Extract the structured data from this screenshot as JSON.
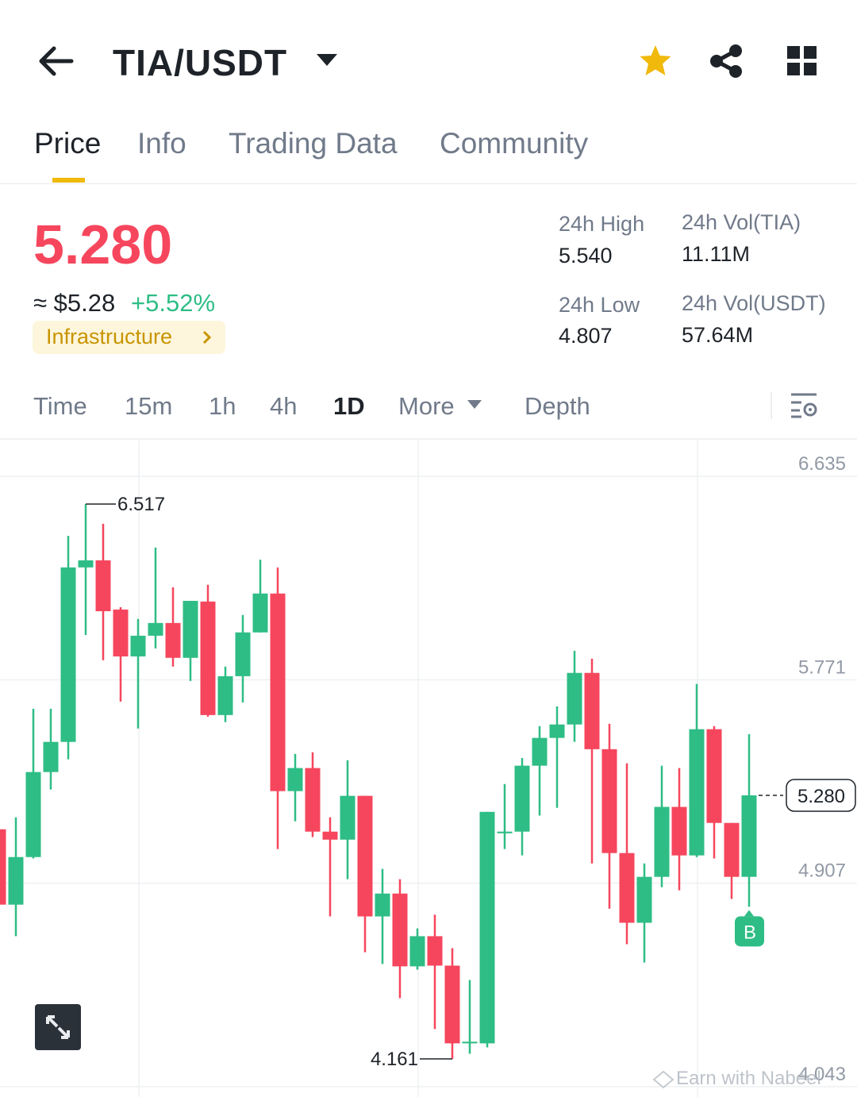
{
  "header": {
    "pair": "TIA/USDT"
  },
  "tabs": [
    "Price",
    "Info",
    "Trading Data",
    "Community"
  ],
  "price": {
    "last": "5.280",
    "fiat": "≈ $5.28",
    "change": "+5.52%",
    "tag": "Infrastructure"
  },
  "stats": [
    {
      "label": "24h High",
      "value": "5.540"
    },
    {
      "label": "24h Vol(TIA)",
      "value": "11.11M"
    },
    {
      "label": "24h Low",
      "value": "4.807"
    },
    {
      "label": "24h Vol(USDT)",
      "value": "57.64M"
    }
  ],
  "intervals": [
    "Time",
    "15m",
    "1h",
    "4h",
    "1D",
    "More",
    "Depth"
  ],
  "watermark": "Earn with Nabeel",
  "chart_data": {
    "type": "candlestick",
    "ylim": [
      4.043,
      6.635
    ],
    "yticks": [
      4.043,
      4.907,
      5.771,
      6.635
    ],
    "grid": true,
    "up_color": "#2ebd85",
    "down_color": "#f6465d",
    "open": [
      5.136,
      4.816,
      5.018,
      5.379,
      5.507,
      6.248,
      6.278,
      6.069,
      5.87,
      5.958,
      6.012,
      5.864,
      6.103,
      5.621,
      5.786,
      5.972,
      6.137,
      5.298,
      5.396,
      5.126,
      5.092,
      5.278,
      4.766,
      4.863,
      4.554,
      4.682,
      4.557,
      4.227,
      4.227,
      5.119,
      5.126,
      5.406,
      5.524,
      5.581,
      5.8,
      5.476,
      5.035,
      4.739,
      4.934,
      5.231,
      5.025,
      5.561,
      5.163,
      4.934
    ],
    "high": [
      5.204,
      5.187,
      5.648,
      5.648,
      6.382,
      6.517,
      6.433,
      6.079,
      6.029,
      6.332,
      6.163,
      6.106,
      6.174,
      5.827,
      6.046,
      6.281,
      6.248,
      5.456,
      5.463,
      5.187,
      5.429,
      5.278,
      4.968,
      4.924,
      4.715,
      4.773,
      4.631,
      4.496,
      5.21,
      5.328,
      5.439,
      5.574,
      5.658,
      5.894,
      5.86,
      5.584,
      5.416,
      4.991,
      5.406,
      5.396,
      5.753,
      5.574,
      5.163,
      5.54
    ],
    "low": [
      4.783,
      4.682,
      5.012,
      5.305,
      5.433,
      5.961,
      5.854,
      5.678,
      5.564,
      5.904,
      5.827,
      5.766,
      5.614,
      5.591,
      5.675,
      5.972,
      5.052,
      5.17,
      5.103,
      4.766,
      4.924,
      4.614,
      4.564,
      4.419,
      4.54,
      4.288,
      4.161,
      4.183,
      4.21,
      5.052,
      5.025,
      5.194,
      5.227,
      5.507,
      4.991,
      4.799,
      4.648,
      4.57,
      4.89,
      4.877,
      5.018,
      5.012,
      4.84,
      4.807
    ],
    "close": [
      4.816,
      5.018,
      5.379,
      5.507,
      6.248,
      6.278,
      6.062,
      5.87,
      5.958,
      6.012,
      5.864,
      6.106,
      5.621,
      5.786,
      5.972,
      6.137,
      5.298,
      5.396,
      5.126,
      5.092,
      5.278,
      4.766,
      4.863,
      4.554,
      4.682,
      4.557,
      4.227,
      4.234,
      5.21,
      5.126,
      5.406,
      5.524,
      5.581,
      5.8,
      5.476,
      5.035,
      4.739,
      4.934,
      5.231,
      5.025,
      5.561,
      5.163,
      4.934,
      5.28
    ],
    "high_label": 6.517,
    "low_label": 4.161,
    "last_price": {
      "value": 5.28,
      "label": "5.280"
    },
    "marker": "B"
  }
}
